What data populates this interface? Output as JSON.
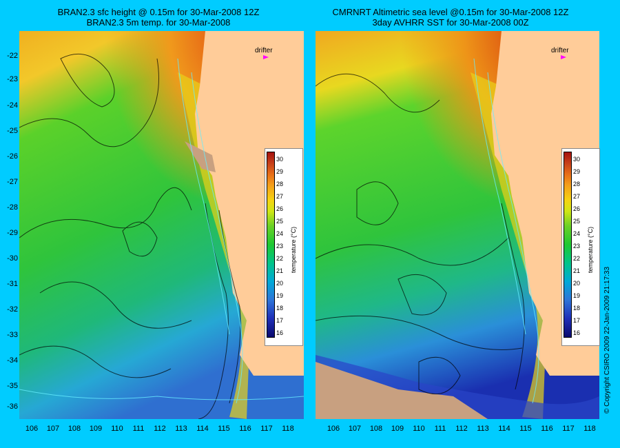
{
  "left_panel": {
    "title_line1": "BRAN2.3 sfc height @ 0.15m for 30-Mar-2008 12Z",
    "title_line2": "BRAN2.3 5m temp. for 30-Mar-2008",
    "drifter_label": "drifter",
    "colorbar": {
      "label": "temperature (°C)",
      "ticks": [
        "30",
        "29",
        "28",
        "27",
        "26",
        "25",
        "24",
        "23",
        "22",
        "21",
        "20",
        "19",
        "18",
        "17",
        "16"
      ]
    }
  },
  "right_panel": {
    "title_line1": "CMRNRT Altimetric sea level  @0.15m  for 30-Mar-2008 12Z",
    "title_line2": "3day AVHRR SST for 30-Mar-2008 00Z",
    "drifter_label": "drifter",
    "colorbar": {
      "label": "temperature (°C)",
      "ticks": [
        "30",
        "29",
        "28",
        "27",
        "26",
        "25",
        "24",
        "23",
        "22",
        "21",
        "20",
        "19",
        "18",
        "17",
        "16"
      ]
    }
  },
  "y_ticks": [
    "-22",
    "-23",
    "-24",
    "-25",
    "-26",
    "-27",
    "-28",
    "-29",
    "-30",
    "-31",
    "-32",
    "-33",
    "-34",
    "-35",
    "-36"
  ],
  "x_ticks": [
    "106",
    "107",
    "108",
    "109",
    "110",
    "111",
    "112",
    "113",
    "114",
    "115",
    "116",
    "117",
    "118"
  ],
  "copyright": "© Copyright CSIRO 2009   22-Jan-2009 21:17:33",
  "colors": {
    "background": "#00ccff",
    "land": "#ffcc99",
    "drifter": "#ff00ff"
  }
}
